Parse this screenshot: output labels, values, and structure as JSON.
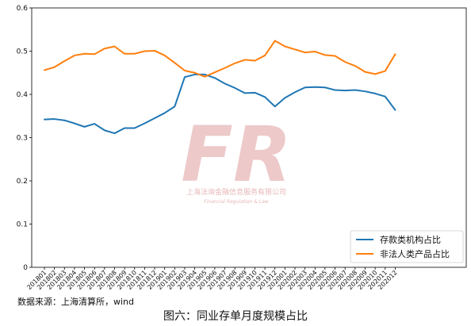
{
  "watermark": {
    "logo_text": "FR",
    "name": "上海法询金融信息服务有限公司",
    "name_en": "Financial Regulation & Law",
    "color": "#e8b7b7"
  },
  "source_note": "数据来源：上海清算所，wind",
  "caption": "图六：同业存单月度规模占比",
  "chart_data": {
    "type": "line",
    "x": [
      "201801",
      "201802",
      "201803",
      "201804",
      "201805",
      "201806",
      "201807",
      "201808",
      "201809",
      "201810",
      "201811",
      "201812",
      "201901",
      "201902",
      "201903",
      "201904",
      "201905",
      "201906",
      "201907",
      "201908",
      "201909",
      "201910",
      "201911",
      "201912",
      "202001",
      "202002",
      "202003",
      "202004",
      "202005",
      "202006",
      "202007",
      "202008",
      "202009",
      "202010",
      "202011",
      "202012"
    ],
    "series": [
      {
        "name": "存款类机构占比",
        "color": "#1f77b4",
        "values": [
          0.342,
          0.343,
          0.34,
          0.333,
          0.325,
          0.332,
          0.317,
          0.31,
          0.322,
          0.322,
          0.333,
          0.345,
          0.357,
          0.372,
          0.44,
          0.446,
          0.446,
          0.438,
          0.425,
          0.415,
          0.403,
          0.404,
          0.394,
          0.372,
          0.392,
          0.405,
          0.416,
          0.417,
          0.416,
          0.41,
          0.409,
          0.41,
          0.407,
          0.402,
          0.395,
          0.364
        ]
      },
      {
        "name": "非法人类产品占比",
        "color": "#ff7f0e",
        "values": [
          0.456,
          0.463,
          0.477,
          0.49,
          0.494,
          0.493,
          0.506,
          0.511,
          0.494,
          0.494,
          0.5,
          0.501,
          0.49,
          0.473,
          0.455,
          0.45,
          0.441,
          0.451,
          0.461,
          0.472,
          0.48,
          0.478,
          0.49,
          0.524,
          0.511,
          0.504,
          0.497,
          0.499,
          0.491,
          0.489,
          0.475,
          0.466,
          0.452,
          0.447,
          0.454,
          0.493
        ]
      }
    ],
    "ylim": [
      0,
      0.6
    ],
    "yticks": [
      "0",
      "0.1",
      "0.2",
      "0.3",
      "0.4",
      "0.5",
      "0.6"
    ],
    "grid": false,
    "legend_position": "bottom-right",
    "xlabel": "",
    "ylabel": ""
  }
}
